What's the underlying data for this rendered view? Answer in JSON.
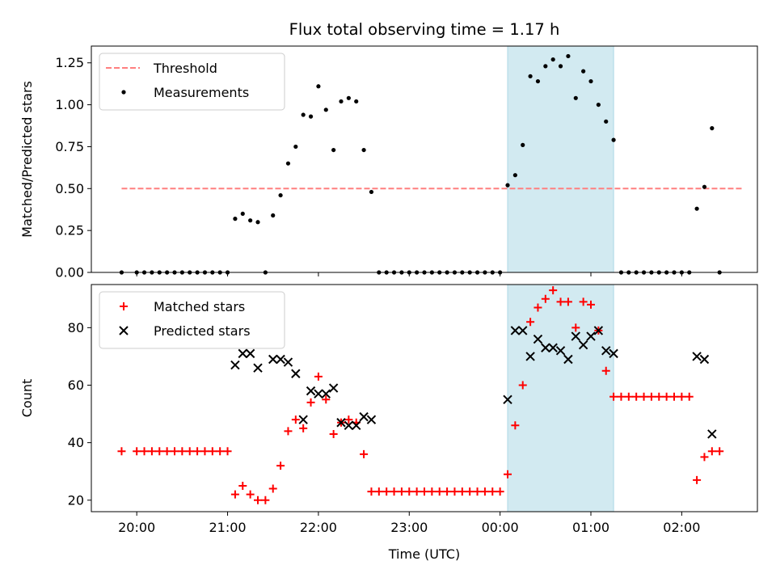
{
  "title": "Flux total observing time = 1.17 h",
  "highlight_color": "#add8e6",
  "chart_data": [
    {
      "name": "ratio-panel",
      "type": "scatter",
      "ylabel": "Matched/Predicted stars",
      "xlabel": "",
      "xlim": [
        "19:30",
        "02:50"
      ],
      "ylim": [
        0.0,
        1.35
      ],
      "yticks": [
        "0.00",
        "0.25",
        "0.50",
        "0.75",
        "1.00",
        "1.25"
      ],
      "highlight": {
        "x_start": "00:05",
        "x_end": "01:15"
      },
      "legend": {
        "location": "upper left"
      },
      "threshold": {
        "name": "Threshold",
        "value": 0.5,
        "x_start": "19:50",
        "x_end": "02:40",
        "color": "#ff7f7f",
        "style": "dashed"
      },
      "series": [
        {
          "name": "Measurements",
          "color": "#000000",
          "marker": "dot",
          "points": [
            [
              "19:50",
              0
            ],
            [
              "20:00",
              0
            ],
            [
              "20:05",
              0
            ],
            [
              "20:10",
              0
            ],
            [
              "20:15",
              0
            ],
            [
              "20:20",
              0
            ],
            [
              "20:25",
              0
            ],
            [
              "20:30",
              0
            ],
            [
              "20:35",
              0
            ],
            [
              "20:40",
              0
            ],
            [
              "20:45",
              0
            ],
            [
              "20:50",
              0
            ],
            [
              "20:55",
              0
            ],
            [
              "21:00",
              0
            ],
            [
              "21:05",
              0.32
            ],
            [
              "21:10",
              0.35
            ],
            [
              "21:15",
              0.31
            ],
            [
              "21:20",
              0.3
            ],
            [
              "21:25",
              0
            ],
            [
              "21:30",
              0.34
            ],
            [
              "21:35",
              0.46
            ],
            [
              "21:40",
              0.65
            ],
            [
              "21:45",
              0.75
            ],
            [
              "21:50",
              0.94
            ],
            [
              "21:55",
              0.93
            ],
            [
              "22:00",
              1.11
            ],
            [
              "22:05",
              0.97
            ],
            [
              "22:10",
              0.73
            ],
            [
              "22:15",
              1.02
            ],
            [
              "22:20",
              1.04
            ],
            [
              "22:25",
              1.02
            ],
            [
              "22:30",
              0.73
            ],
            [
              "22:35",
              0.48
            ],
            [
              "22:40",
              0
            ],
            [
              "22:45",
              0
            ],
            [
              "22:50",
              0
            ],
            [
              "22:55",
              0
            ],
            [
              "23:00",
              0
            ],
            [
              "23:05",
              0
            ],
            [
              "23:10",
              0
            ],
            [
              "23:15",
              0
            ],
            [
              "23:20",
              0
            ],
            [
              "23:25",
              0
            ],
            [
              "23:30",
              0
            ],
            [
              "23:35",
              0
            ],
            [
              "23:40",
              0
            ],
            [
              "23:45",
              0
            ],
            [
              "23:50",
              0
            ],
            [
              "23:55",
              0
            ],
            [
              "00:00",
              0
            ],
            [
              "00:05",
              0.52
            ],
            [
              "00:10",
              0.58
            ],
            [
              "00:15",
              0.76
            ],
            [
              "00:20",
              1.17
            ],
            [
              "00:25",
              1.14
            ],
            [
              "00:30",
              1.23
            ],
            [
              "00:35",
              1.27
            ],
            [
              "00:40",
              1.23
            ],
            [
              "00:45",
              1.29
            ],
            [
              "00:50",
              1.04
            ],
            [
              "00:55",
              1.2
            ],
            [
              "01:00",
              1.14
            ],
            [
              "01:05",
              1.0
            ],
            [
              "01:10",
              0.9
            ],
            [
              "01:15",
              0.79
            ],
            [
              "01:20",
              0
            ],
            [
              "01:25",
              0
            ],
            [
              "01:30",
              0
            ],
            [
              "01:35",
              0
            ],
            [
              "01:40",
              0
            ],
            [
              "01:45",
              0
            ],
            [
              "01:50",
              0
            ],
            [
              "01:55",
              0
            ],
            [
              "02:00",
              0
            ],
            [
              "02:05",
              0
            ],
            [
              "02:10",
              0.38
            ],
            [
              "02:15",
              0.51
            ],
            [
              "02:20",
              0.86
            ],
            [
              "02:25",
              0
            ]
          ]
        }
      ]
    },
    {
      "name": "count-panel",
      "type": "scatter",
      "ylabel": "Count",
      "xlabel": "Time (UTC)",
      "xlim": [
        "19:30",
        "02:50"
      ],
      "ylim": [
        16,
        95
      ],
      "yticks": [
        "20",
        "40",
        "60",
        "80"
      ],
      "xticks": [
        "20:00",
        "21:00",
        "22:00",
        "23:00",
        "00:00",
        "01:00",
        "02:00"
      ],
      "highlight": {
        "x_start": "00:05",
        "x_end": "01:15"
      },
      "legend": {
        "location": "upper left"
      },
      "series": [
        {
          "name": "Matched stars",
          "color": "#ff0000",
          "marker": "plus",
          "points": [
            [
              "19:50",
              37
            ],
            [
              "20:00",
              37
            ],
            [
              "20:05",
              37
            ],
            [
              "20:10",
              37
            ],
            [
              "20:15",
              37
            ],
            [
              "20:20",
              37
            ],
            [
              "20:25",
              37
            ],
            [
              "20:30",
              37
            ],
            [
              "20:35",
              37
            ],
            [
              "20:40",
              37
            ],
            [
              "20:45",
              37
            ],
            [
              "20:50",
              37
            ],
            [
              "20:55",
              37
            ],
            [
              "21:00",
              37
            ],
            [
              "21:05",
              22
            ],
            [
              "21:10",
              25
            ],
            [
              "21:15",
              22
            ],
            [
              "21:20",
              20
            ],
            [
              "21:25",
              20
            ],
            [
              "21:30",
              24
            ],
            [
              "21:35",
              32
            ],
            [
              "21:40",
              44
            ],
            [
              "21:45",
              48
            ],
            [
              "21:50",
              45
            ],
            [
              "21:55",
              54
            ],
            [
              "22:00",
              63
            ],
            [
              "22:05",
              55
            ],
            [
              "22:10",
              43
            ],
            [
              "22:15",
              47
            ],
            [
              "22:20",
              48
            ],
            [
              "22:25",
              47
            ],
            [
              "22:30",
              36
            ],
            [
              "22:35",
              23
            ],
            [
              "22:40",
              23
            ],
            [
              "22:45",
              23
            ],
            [
              "22:50",
              23
            ],
            [
              "22:55",
              23
            ],
            [
              "23:00",
              23
            ],
            [
              "23:05",
              23
            ],
            [
              "23:10",
              23
            ],
            [
              "23:15",
              23
            ],
            [
              "23:20",
              23
            ],
            [
              "23:25",
              23
            ],
            [
              "23:30",
              23
            ],
            [
              "23:35",
              23
            ],
            [
              "23:40",
              23
            ],
            [
              "23:45",
              23
            ],
            [
              "23:50",
              23
            ],
            [
              "23:55",
              23
            ],
            [
              "00:00",
              23
            ],
            [
              "00:05",
              29
            ],
            [
              "00:10",
              46
            ],
            [
              "00:15",
              60
            ],
            [
              "00:20",
              82
            ],
            [
              "00:25",
              87
            ],
            [
              "00:30",
              90
            ],
            [
              "00:35",
              93
            ],
            [
              "00:40",
              89
            ],
            [
              "00:45",
              89
            ],
            [
              "00:50",
              80
            ],
            [
              "00:55",
              89
            ],
            [
              "01:00",
              88
            ],
            [
              "01:05",
              79
            ],
            [
              "01:10",
              65
            ],
            [
              "01:15",
              56
            ],
            [
              "01:20",
              56
            ],
            [
              "01:25",
              56
            ],
            [
              "01:30",
              56
            ],
            [
              "01:35",
              56
            ],
            [
              "01:40",
              56
            ],
            [
              "01:45",
              56
            ],
            [
              "01:50",
              56
            ],
            [
              "01:55",
              56
            ],
            [
              "02:00",
              56
            ],
            [
              "02:05",
              56
            ],
            [
              "02:10",
              27
            ],
            [
              "02:15",
              35
            ],
            [
              "02:20",
              37
            ],
            [
              "02:25",
              37
            ]
          ]
        },
        {
          "name": "Predicted stars",
          "color": "#000000",
          "marker": "x",
          "points": [
            [
              "21:05",
              67
            ],
            [
              "21:10",
              71
            ],
            [
              "21:15",
              71
            ],
            [
              "21:20",
              66
            ],
            [
              "21:30",
              69
            ],
            [
              "21:35",
              69
            ],
            [
              "21:40",
              68
            ],
            [
              "21:45",
              64
            ],
            [
              "21:50",
              48
            ],
            [
              "21:55",
              58
            ],
            [
              "22:00",
              57
            ],
            [
              "22:05",
              57
            ],
            [
              "22:10",
              59
            ],
            [
              "22:15",
              47
            ],
            [
              "22:20",
              46
            ],
            [
              "22:25",
              46
            ],
            [
              "22:30",
              49
            ],
            [
              "22:35",
              48
            ],
            [
              "00:05",
              55
            ],
            [
              "00:10",
              79
            ],
            [
              "00:15",
              79
            ],
            [
              "00:20",
              70
            ],
            [
              "00:25",
              76
            ],
            [
              "00:30",
              73
            ],
            [
              "00:35",
              73
            ],
            [
              "00:40",
              72
            ],
            [
              "00:45",
              69
            ],
            [
              "00:50",
              77
            ],
            [
              "00:55",
              74
            ],
            [
              "01:00",
              77
            ],
            [
              "01:05",
              79
            ],
            [
              "01:10",
              72
            ],
            [
              "01:15",
              71
            ],
            [
              "02:10",
              70
            ],
            [
              "02:15",
              69
            ],
            [
              "02:20",
              43
            ]
          ]
        }
      ]
    }
  ]
}
